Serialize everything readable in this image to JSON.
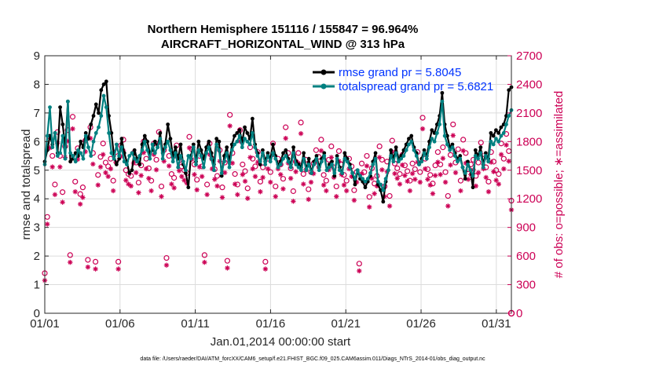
{
  "chart_data": {
    "type": "line",
    "title_line1": "Northern Hemisphere 151116 / 155847 = 96.964%",
    "title_line2": "AIRCRAFT_HORIZONTAL_WIND @ 313 hPa",
    "xlabel": "Jan.01,2014 00:00:00 start",
    "ylabel_left": "rmse and totalspread",
    "ylabel_right": "# of obs: o=possible; ∗=assimilated",
    "footer": "data file: /Users/raeder/DAI/ATM_forcXX/CAM6_setup/f.e21.FHIST_BGC.f09_025.CAM6assim.011/Diags_NTrS_2014-01/obs_diag_output.nc",
    "xlim": [
      1.0,
      32.0
    ],
    "ylim_left": [
      0,
      9
    ],
    "ylim_right": [
      0,
      2700
    ],
    "x_tick_labels": [
      "01/01",
      "01/06",
      "01/11",
      "01/16",
      "01/21",
      "01/26",
      "01/31"
    ],
    "x_tick_values": [
      1,
      6,
      11,
      16,
      21,
      26,
      31
    ],
    "y_left_ticks": [
      "0",
      "1",
      "2",
      "3",
      "4",
      "5",
      "6",
      "7",
      "8",
      "9"
    ],
    "y_left_tick_values": [
      0,
      1,
      2,
      3,
      4,
      5,
      6,
      7,
      8,
      9
    ],
    "y_right_ticks": [
      "0",
      "300",
      "600",
      "900",
      "1200",
      "1500",
      "1800",
      "2100",
      "2400",
      "2700"
    ],
    "y_right_tick_values": [
      0,
      300,
      600,
      900,
      1200,
      1500,
      1800,
      2100,
      2400,
      2700
    ],
    "series": [
      {
        "name": "rmse grand pr = 5.8045",
        "color": "#000000",
        "axis": "left",
        "values": [
          5.3,
          5.7,
          6.2,
          5.9,
          6.3,
          5.6,
          7.2,
          6.6,
          5.8,
          7.4,
          5.3,
          5.4,
          5.6,
          5.5,
          6.0,
          5.8,
          6.3,
          6.1,
          6.6,
          6.9,
          7.3,
          7.0,
          7.8,
          8.0,
          8.1,
          6.9,
          6.3,
          5.5,
          5.2,
          5.4,
          6.1,
          5.6,
          5.3,
          4.9,
          5.0,
          5.7,
          5.4,
          5.2,
          5.9,
          6.2,
          6.0,
          5.6,
          5.7,
          6.0,
          5.8,
          6.3,
          5.6,
          5.9,
          6.6,
          6.1,
          5.5,
          5.8,
          5.4,
          5.9,
          5.2,
          4.9,
          4.4,
          5.5,
          5.9,
          5.3,
          6.0,
          5.7,
          5.4,
          5.8,
          6.0,
          5.6,
          5.2,
          6.1,
          6.0,
          4.8,
          5.5,
          5.8,
          5.3,
          5.9,
          6.2,
          6.3,
          6.4,
          6.0,
          6.5,
          6.3,
          6.1,
          6.8,
          5.9,
          5.6,
          5.2,
          5.7,
          5.3,
          5.6,
          5.4,
          5.9,
          5.5,
          5.2,
          5.3,
          5.6,
          5.7,
          5.4,
          5.2,
          5.8,
          5.3,
          5.2,
          5.1,
          5.6,
          5.0,
          5.4,
          4.9,
          5.3,
          5.5,
          5.1,
          5.4,
          5.6,
          5.0,
          5.2,
          5.3,
          4.8,
          5.5,
          5.1,
          4.9,
          5.6,
          5.4,
          5.2,
          4.9,
          4.5,
          5.0,
          4.7,
          4.6,
          4.4,
          4.6,
          4.8,
          5.3,
          5.6,
          4.5,
          4.3,
          3.9,
          4.6,
          5.0,
          5.7,
          5.4,
          5.8,
          5.4,
          5.5,
          5.7,
          5.9,
          6.1,
          6.2,
          5.8,
          5.6,
          5.2,
          5.4,
          5.7,
          5.5,
          6.0,
          6.4,
          6.3,
          6.6,
          6.9,
          7.7,
          6.6,
          6.2,
          5.8,
          5.9,
          5.6,
          5.4,
          5.5,
          5.1,
          4.7,
          5.3,
          5.0,
          4.4,
          5.7,
          5.5,
          5.8,
          5.2,
          5.6,
          5.4,
          6.3,
          6.2,
          6.4,
          6.3,
          6.5,
          6.6,
          6.9,
          7.8,
          7.9
        ]
      },
      {
        "name": "totalspread grand pr = 5.6821",
        "color": "#008080",
        "axis": "left",
        "values": [
          5.2,
          6.2,
          7.2,
          5.8,
          6.3,
          5.5,
          5.6,
          6.2,
          5.4,
          7.4,
          5.6,
          5.5,
          5.3,
          5.7,
          5.6,
          5.4,
          6.2,
          5.8,
          5.5,
          6.0,
          6.3,
          6.5,
          6.9,
          7.6,
          7.2,
          6.3,
          5.6,
          5.4,
          5.9,
          5.5,
          5.8,
          5.3,
          5.2,
          5.5,
          5.6,
          5.4,
          5.3,
          5.5,
          5.7,
          6.0,
          5.7,
          5.4,
          5.9,
          5.6,
          5.8,
          6.1,
          5.4,
          5.8,
          6.0,
          5.7,
          5.3,
          5.6,
          5.1,
          5.5,
          5.3,
          5.0,
          5.5,
          5.4,
          5.8,
          5.2,
          5.7,
          5.5,
          5.1,
          5.6,
          5.8,
          5.4,
          5.0,
          5.9,
          5.7,
          4.9,
          5.3,
          5.6,
          5.1,
          5.7,
          5.9,
          6.0,
          6.2,
          5.8,
          6.1,
          6.0,
          5.9,
          6.3,
          5.8,
          5.5,
          5.3,
          5.6,
          5.2,
          5.5,
          5.3,
          5.6,
          5.4,
          5.1,
          5.2,
          5.4,
          5.5,
          5.3,
          5.1,
          5.6,
          5.2,
          5.1,
          5.0,
          5.4,
          5.0,
          5.2,
          4.9,
          5.2,
          5.4,
          5.0,
          5.3,
          5.5,
          5.0,
          5.1,
          5.2,
          4.9,
          5.4,
          5.0,
          4.9,
          5.4,
          5.3,
          5.1,
          4.9,
          4.7,
          5.0,
          4.8,
          4.7,
          4.6,
          4.7,
          4.9,
          5.2,
          5.4,
          4.6,
          4.5,
          4.3,
          4.7,
          5.0,
          5.5,
          5.3,
          5.6,
          5.3,
          5.4,
          5.5,
          5.7,
          5.9,
          6.0,
          5.7,
          5.5,
          5.2,
          5.3,
          5.6,
          5.4,
          5.8,
          6.1,
          6.0,
          6.3,
          6.6,
          7.4,
          6.2,
          5.9,
          5.7,
          5.8,
          5.5,
          5.3,
          5.4,
          5.1,
          4.9,
          5.2,
          5.0,
          4.8,
          5.5,
          5.4,
          5.6,
          5.1,
          5.5,
          5.3,
          6.0,
          5.9,
          6.1,
          6.0,
          6.2,
          6.3,
          6.6,
          6.9,
          7.1
        ]
      }
    ],
    "obs_possible": {
      "name": "possible",
      "marker": "o",
      "color": "#cc0055",
      "axis": "right",
      "values": [
        420,
        1010,
        1850,
        1650,
        1350,
        1900,
        1650,
        1270,
        1750,
        1920,
        610,
        2060,
        1380,
        1730,
        1250,
        1320,
        1810,
        560,
        1950,
        1680,
        540,
        1450,
        1640,
        1780,
        1580,
        1540,
        1620,
        1390,
        1690,
        540,
        1760,
        1820,
        1500,
        1460,
        1440,
        1680,
        1580,
        1370,
        1550,
        1800,
        1620,
        1520,
        1390,
        1780,
        1610,
        1900,
        1330,
        1710,
        580,
        1650,
        1460,
        1420,
        1760,
        1600,
        1540,
        1500,
        1470,
        1850,
        1720,
        1560,
        1400,
        1650,
        1540,
        610,
        1350,
        1780,
        1620,
        1510,
        1440,
        1710,
        1320,
        1580,
        550,
        2080,
        1680,
        1460,
        1350,
        1920,
        1560,
        1490,
        1310,
        1740,
        1620,
        1540,
        1690,
        1380,
        1530,
        540,
        1620,
        1480,
        1780,
        1330,
        1620,
        1560,
        1410,
        1950,
        1680,
        1520,
        1280,
        1590,
        1680,
        2000,
        1460,
        1610,
        1300,
        1480,
        1570,
        1710,
        1640,
        1820,
        1450,
        1390,
        1610,
        1750,
        1530,
        1330,
        1700,
        1560,
        1450,
        1390,
        1620,
        1540,
        1290,
        1480,
        520,
        1570,
        1480,
        1650,
        1220,
        1520,
        1360,
        1440,
        1750,
        1610,
        1330,
        1590,
        1230,
        1810,
        1570,
        1520,
        1460,
        1660,
        1550,
        1490,
        1390,
        1570,
        1510,
        1690,
        1480,
        2050,
        1620,
        1510,
        1450,
        1360,
        1550,
        1690,
        1560,
        1740,
        1480,
        1230,
        1660,
        1980,
        1580,
        1720,
        1390,
        1820,
        1680,
        1510,
        1560,
        1610,
        1440,
        1580,
        1790,
        1620,
        1530,
        1380,
        1690,
        1590,
        1500,
        1460,
        1780,
        1620,
        1880,
        1700,
        1180
      ]
    },
    "obs_assimilated": {
      "name": "assimilated",
      "marker": "*",
      "color": "#cc0055",
      "axis": "right",
      "values": [
        410,
        1000,
        1800,
        1600,
        1310,
        1850,
        1600,
        1230,
        1700,
        1870,
        600,
        2000,
        1340,
        1680,
        1210,
        1280,
        1760,
        550,
        1900,
        1630,
        530,
        1410,
        1600,
        1730,
        1540,
        1500,
        1580,
        1350,
        1650,
        530,
        1710,
        1770,
        1460,
        1420,
        1400,
        1640,
        1540,
        1330,
        1510,
        1750,
        1580,
        1480,
        1350,
        1730,
        1570,
        1850,
        1290,
        1660,
        570,
        1610,
        1420,
        1380,
        1710,
        1560,
        1500,
        1460,
        1430,
        1800,
        1680,
        1520,
        1360,
        1600,
        1500,
        600,
        1310,
        1730,
        1580,
        1470,
        1400,
        1660,
        1280,
        1540,
        540,
        2030,
        1640,
        1420,
        1310,
        1870,
        1520,
        1450,
        1270,
        1700,
        1580,
        1500,
        1650,
        1340,
        1490,
        530,
        1580,
        1440,
        1730,
        1290,
        1580,
        1520,
        1370,
        1900,
        1640,
        1480,
        1240,
        1550,
        1640,
        1950,
        1420,
        1570,
        1260,
        1440,
        1530,
        1660,
        1600,
        1770,
        1410,
        1350,
        1570,
        1700,
        1490,
        1290,
        1660,
        1520,
        1410,
        1350,
        1580,
        1500,
        1250,
        1440,
        510,
        1530,
        1440,
        1610,
        1180,
        1480,
        1320,
        1400,
        1700,
        1570,
        1290,
        1550,
        1190,
        1760,
        1530,
        1480,
        1420,
        1620,
        1510,
        1450,
        1350,
        1530,
        1470,
        1650,
        1440,
        2000,
        1580,
        1470,
        1410,
        1320,
        1510,
        1650,
        1520,
        1690,
        1440,
        1190,
        1620,
        1930,
        1540,
        1680,
        1350,
        1770,
        1640,
        1470,
        1520,
        1570,
        1400,
        1540,
        1740,
        1580,
        1490,
        1340,
        1650,
        1550,
        1460,
        1420,
        1730,
        1580,
        1830,
        1660,
        1150
      ]
    },
    "legend_position": "top-right"
  }
}
